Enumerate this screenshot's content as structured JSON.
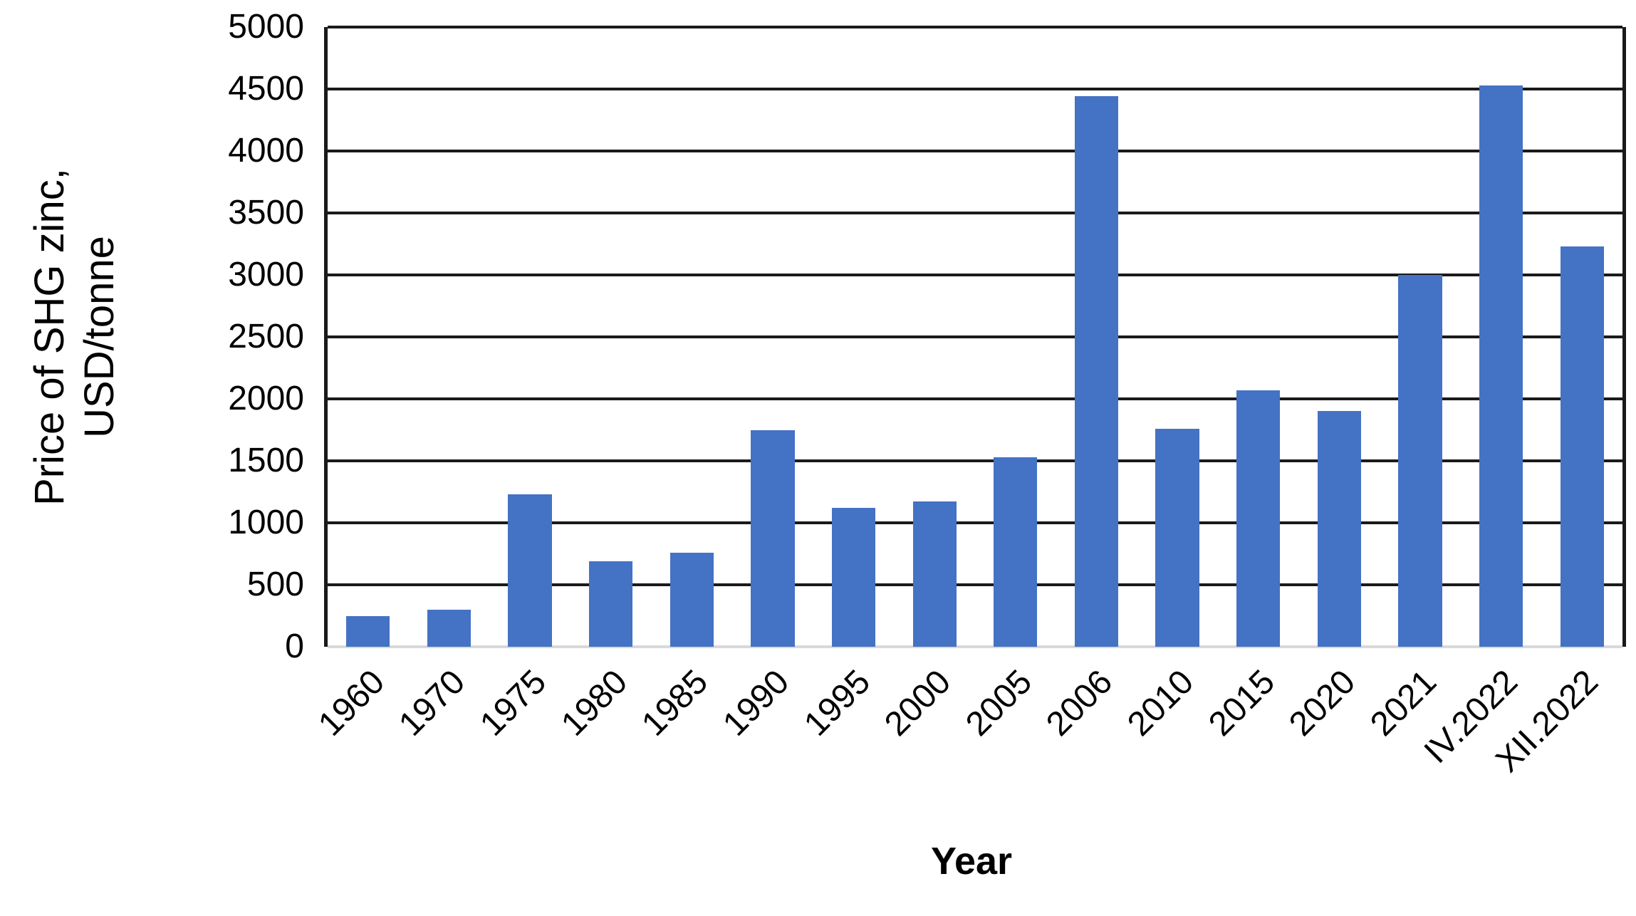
{
  "chart_data": {
    "type": "bar",
    "title": "",
    "xlabel": "Year",
    "ylabel": "Price of SHG zinc, USD/tonne",
    "ylabel_lines": [
      "Price of SHG zinc,",
      "USD/tonne"
    ],
    "categories": [
      "1960",
      "1970",
      "1975",
      "1980",
      "1985",
      "1990",
      "1995",
      "2000",
      "2005",
      "2006",
      "2010",
      "2015",
      "2020",
      "2021",
      "IV.2022",
      "XII.2022"
    ],
    "values": [
      250,
      300,
      1230,
      690,
      760,
      1750,
      1120,
      1170,
      1530,
      4440,
      1760,
      2070,
      1900,
      3000,
      4530,
      3230
    ],
    "ylim": [
      0,
      5000
    ],
    "yticks": [
      0,
      500,
      1000,
      1500,
      2000,
      2500,
      3000,
      3500,
      4000,
      4500,
      5000
    ],
    "grid": "horizontal",
    "legend_position": "none",
    "bar_color": "#4472C4",
    "gridline_color": "#1a1a1a",
    "baseline_color": "#d9d9d9",
    "text_color": "#000000"
  }
}
